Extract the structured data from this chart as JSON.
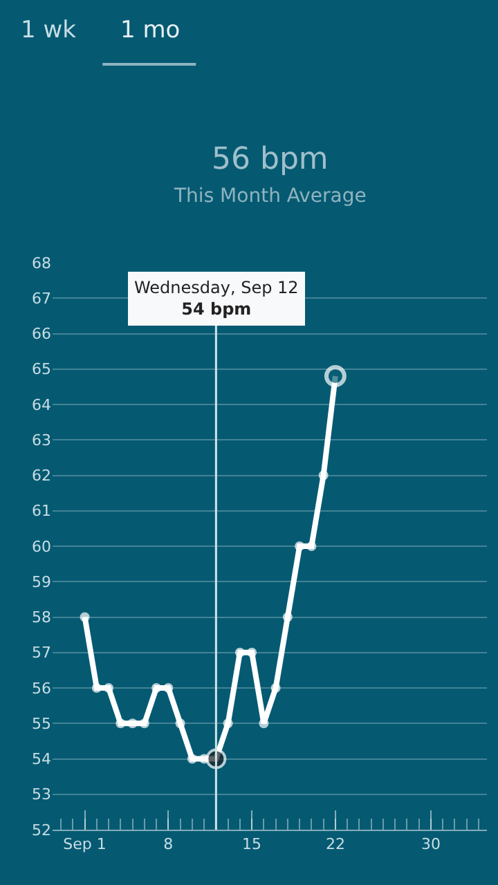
{
  "chart_data": {
    "type": "line",
    "title": "56 bpm",
    "subtitle": "This Month Average",
    "annotations": [
      "1 wk",
      "1 mo",
      "Wednesday, Sep 12\n54 bpm"
    ],
    "x": [
      1,
      2,
      3,
      4,
      5,
      6,
      7,
      8,
      9,
      10,
      11,
      12,
      13,
      14,
      15,
      16,
      17,
      18,
      19,
      20,
      21,
      22
    ],
    "series": [
      {
        "color": "#ffffff",
        "colors": [
          "#ffffff",
          "#ffffff",
          "#ffffff",
          "#ffffff",
          "#ffffff",
          "#ffffff",
          "#ffffff",
          "#ffffff",
          "#ffffff",
          "#ffffff",
          "#ffffff",
          "#1c2128",
          "#ffffff",
          "#ffffff",
          "#ffffff",
          "#ffffff",
          "#ffffff",
          "#ffffff",
          "#ffffff",
          "#ffffff",
          "#ffffff",
          "#ffffff"
        ],
        "values": [
          58,
          56,
          56,
          55,
          55,
          55,
          56,
          56,
          55,
          54,
          54,
          54,
          55,
          57,
          57,
          55,
          56,
          58,
          60,
          60,
          62,
          64.8
        ]
      }
    ],
    "xlim": [
      -1.7,
      34.7
    ],
    "xticks": [
      {
        "value": 1,
        "label": "Sep 1"
      },
      8,
      15,
      22,
      30
    ],
    "ylim": [
      52,
      68
    ],
    "yticks": [
      52,
      53,
      54,
      55,
      56,
      57,
      58,
      59,
      60,
      61,
      62,
      63,
      64,
      65,
      66,
      67,
      68
    ],
    "ref_lines": [
      {
        "axis": "x",
        "value": 12,
        "color": "#d0e4ea"
      }
    ],
    "grid": "y",
    "marker": "circle",
    "line_style": "solid"
  }
}
